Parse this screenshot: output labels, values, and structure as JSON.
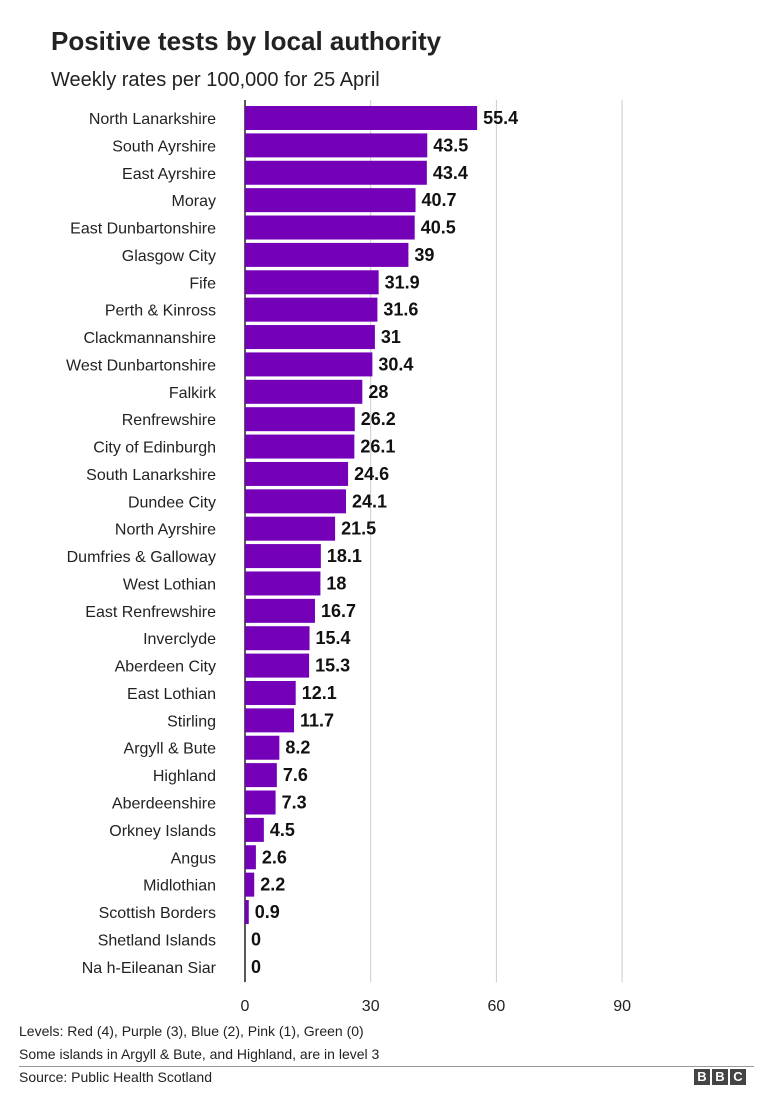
{
  "header": {
    "title": "Positive tests by local authority",
    "subtitle": "Weekly rates per 100,000 for 25 April"
  },
  "footer": {
    "note_levels": "Levels: Red (4), Purple (3), Blue (2), Pink (1), Green (0)",
    "note_islands": "Some islands in Argyll & Bute, and Highland, are in level 3",
    "source": "Source: Public Health Scotland",
    "logo_letters": [
      "B",
      "B",
      "C"
    ]
  },
  "colors": {
    "bar": "#7400b8",
    "grid": "#cccccc",
    "baseline": "#222222"
  },
  "chart_data": {
    "type": "bar",
    "orientation": "horizontal",
    "title": "Positive tests by local authority",
    "subtitle": "Weekly rates per 100,000 for 25 April",
    "xlabel": "",
    "ylabel": "",
    "xlim": [
      0,
      90
    ],
    "xticks": [
      0,
      30,
      60,
      90
    ],
    "grid": true,
    "categories": [
      "North Lanarkshire",
      "South Ayrshire",
      "East Ayrshire",
      "Moray",
      "East Dunbartonshire",
      "Glasgow City",
      "Fife",
      "Perth & Kinross",
      "Clackmannanshire",
      "West Dunbartonshire",
      "Falkirk",
      "Renfrewshire",
      "City of Edinburgh",
      "South Lanarkshire",
      "Dundee City",
      "North Ayrshire",
      "Dumfries & Galloway",
      "West Lothian",
      "East Renfrewshire",
      "Inverclyde",
      "Aberdeen City",
      "East Lothian",
      "Stirling",
      "Argyll & Bute",
      "Highland",
      "Aberdeenshire",
      "Orkney Islands",
      "Angus",
      "Midlothian",
      "Scottish Borders",
      "Shetland Islands",
      "Na h-Eileanan Siar"
    ],
    "values": [
      55.4,
      43.5,
      43.4,
      40.7,
      40.5,
      39,
      31.9,
      31.6,
      31,
      30.4,
      28,
      26.2,
      26.1,
      24.6,
      24.1,
      21.5,
      18.1,
      18,
      16.7,
      15.4,
      15.3,
      12.1,
      11.7,
      8.2,
      7.6,
      7.3,
      4.5,
      2.6,
      2.2,
      0.9,
      0,
      0
    ],
    "value_labels": [
      "55.4",
      "43.5",
      "43.4",
      "40.7",
      "40.5",
      "39",
      "31.9",
      "31.6",
      "31",
      "30.4",
      "28",
      "26.2",
      "26.1",
      "24.6",
      "24.1",
      "21.5",
      "18.1",
      "18",
      "16.7",
      "15.4",
      "15.3",
      "12.1",
      "11.7",
      "8.2",
      "7.6",
      "7.3",
      "4.5",
      "2.6",
      "2.2",
      "0.9",
      "0",
      "0"
    ]
  }
}
